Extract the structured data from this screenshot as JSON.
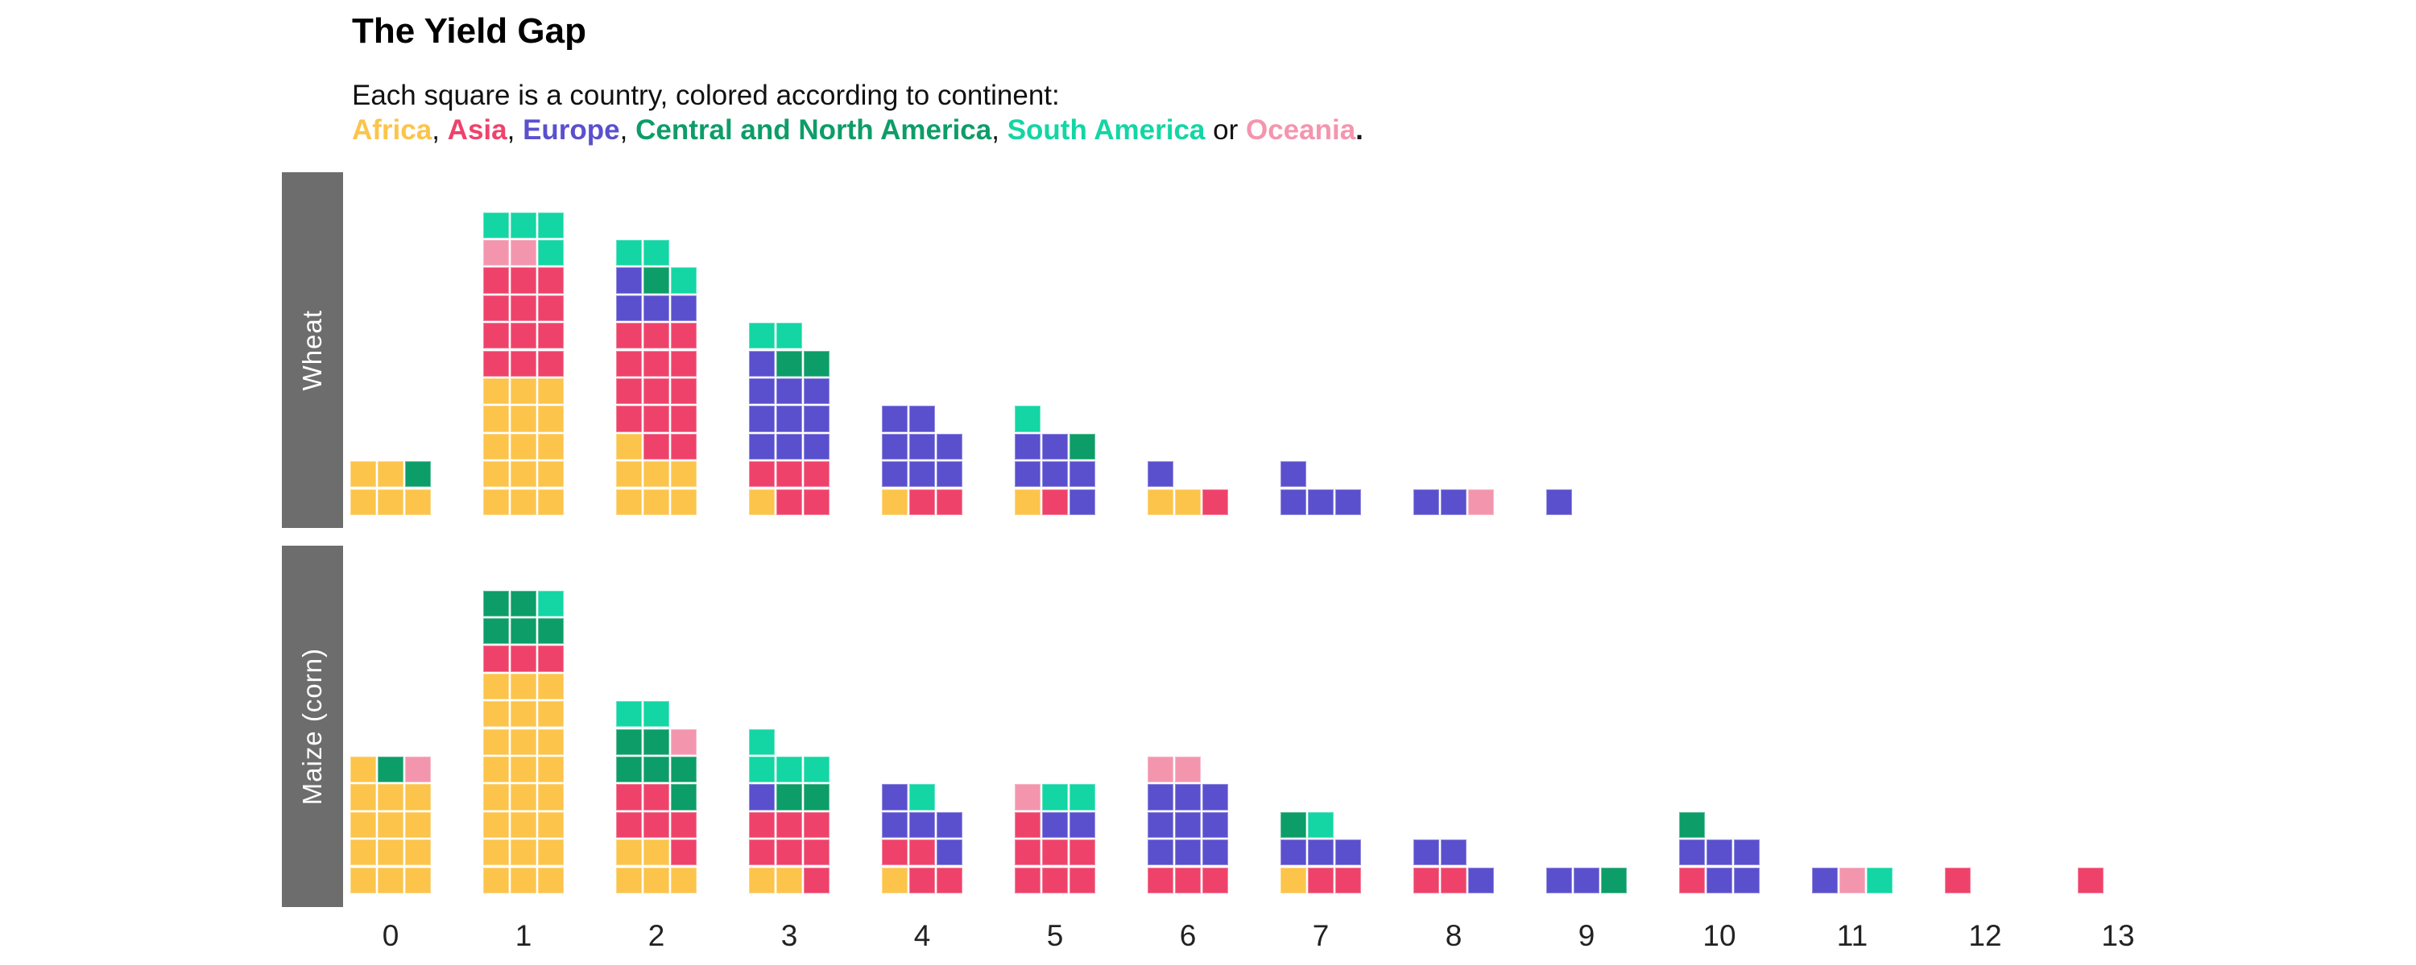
{
  "header": {
    "title": "The Yield Gap",
    "subtitle": "Each square is a country, colored according to continent:"
  },
  "legend": {
    "items": [
      {
        "label": "Africa",
        "color": "#FCC44B",
        "sep": ", "
      },
      {
        "label": "Asia",
        "color": "#EF426B",
        "sep": ", "
      },
      {
        "label": "Europe",
        "color": "#5A50CE",
        "sep": ", "
      },
      {
        "label": "Central and North America",
        "color": "#0D9D68",
        "sep": ", "
      },
      {
        "label": "South America",
        "color": "#13D6A4",
        "sep": " or "
      },
      {
        "label": "Oceania",
        "color": "#F495AE",
        "sep": "."
      }
    ]
  },
  "panels": [
    {
      "label": "Wheat"
    },
    {
      "label": "Maize (corn)"
    }
  ],
  "axis": {
    "ticks": [
      "0",
      "1",
      "2",
      "3",
      "4",
      "5",
      "6",
      "7",
      "8",
      "9",
      "10",
      "11",
      "12",
      "13"
    ]
  },
  "colors": {
    "panel_bar_bg": "#6D6D6D",
    "panel_label_text": "#FFFFFF",
    "background": "#FFFFFF"
  },
  "chart_data": {
    "type": "waffle-histogram",
    "unit": "1 square = 1 country",
    "title": "The Yield Gap",
    "subtitle": "Each square is a country, colored according to continent:",
    "x_values": [
      0,
      1,
      2,
      3,
      4,
      5,
      6,
      7,
      8,
      9,
      10,
      11,
      12,
      13
    ],
    "grid": false,
    "legend_position": "top-text",
    "color_key": {
      "Y": {
        "continent": "Africa",
        "hex": "#FCC44B"
      },
      "A": {
        "continent": "Asia",
        "hex": "#EF426B"
      },
      "E": {
        "continent": "Europe",
        "hex": "#5A50CE"
      },
      "C": {
        "continent": "Central and North America",
        "hex": "#0D9D68"
      },
      "S": {
        "continent": "South America",
        "hex": "#13D6A4"
      },
      "O": {
        "continent": "Oceania",
        "hex": "#F495AE"
      }
    },
    "row_note": "rows listed bottom-to-top, letters left-to-right, 3 squares per row max",
    "panels": [
      {
        "label": "Wheat",
        "columns": [
          [
            "YYY",
            "YYC"
          ],
          [
            "YYY",
            "YYY",
            "YYY",
            "YYY",
            "YYY",
            "AAA",
            "AAA",
            "AAA",
            "AAA",
            "OOS",
            "SSS"
          ],
          [
            "YYY",
            "YYY",
            "YAA",
            "AAA",
            "AAA",
            "AAA",
            "AAA",
            "EEE",
            "ECS",
            "SS"
          ],
          [
            "YAA",
            "AAA",
            "EEE",
            "EEE",
            "EEE",
            "ECC",
            "SS"
          ],
          [
            "YAA",
            "EEE",
            "EEE",
            "EE"
          ],
          [
            "YAE",
            "EEE",
            "EEC",
            "S"
          ],
          [
            "YYA",
            "E"
          ],
          [
            "EEE",
            "E"
          ],
          [
            "EEO"
          ],
          [
            "E"
          ],
          [],
          [],
          [],
          []
        ]
      },
      {
        "label": "Maize (corn)",
        "columns": [
          [
            "YYY",
            "YYY",
            "YYY",
            "YYY",
            "YCO"
          ],
          [
            "YYY",
            "YYY",
            "YYY",
            "YYY",
            "YYY",
            "YYY",
            "YYY",
            "YYY",
            "AAA",
            "CCC",
            "CCS"
          ],
          [
            "YYY",
            "YYA",
            "AAA",
            "AAC",
            "CCC",
            "CCO",
            "SS"
          ],
          [
            "YYA",
            "AAA",
            "AAA",
            "ECC",
            "SSS",
            "S"
          ],
          [
            "YAA",
            "AAE",
            "EEE",
            "ES"
          ],
          [
            "AAA",
            "AAA",
            "AEE",
            "OSS"
          ],
          [
            "AAA",
            "EEE",
            "EEE",
            "EEE",
            "OO"
          ],
          [
            "YAA",
            "EEE",
            "CS"
          ],
          [
            "AAE",
            "EE"
          ],
          [
            "EEC"
          ],
          [
            "AEE",
            "EEE",
            "C"
          ],
          [
            "EOS"
          ],
          [
            "A"
          ],
          [
            "A"
          ]
        ]
      }
    ]
  }
}
